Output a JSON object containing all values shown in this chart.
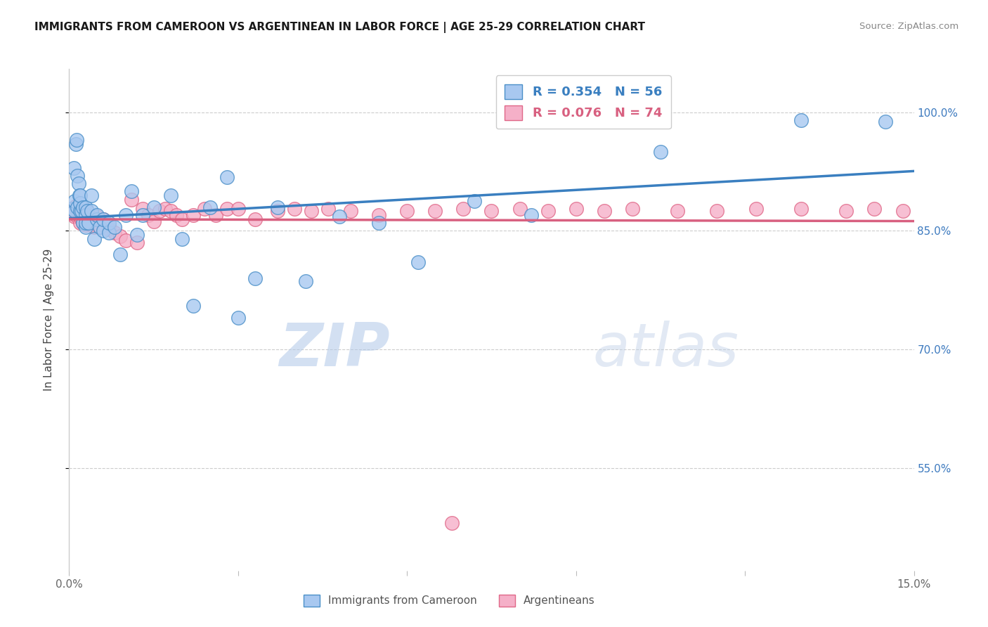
{
  "title": "IMMIGRANTS FROM CAMEROON VS ARGENTINEAN IN LABOR FORCE | AGE 25-29 CORRELATION CHART",
  "source": "Source: ZipAtlas.com",
  "ylabel": "In Labor Force | Age 25-29",
  "xmin": 0.0,
  "xmax": 0.15,
  "ymin": 0.42,
  "ymax": 1.055,
  "blue_R": 0.354,
  "blue_N": 56,
  "pink_R": 0.076,
  "pink_N": 74,
  "blue_color": "#a8c8f0",
  "pink_color": "#f5b0c8",
  "blue_edge_color": "#4a8fc8",
  "pink_edge_color": "#e06888",
  "blue_line_color": "#3a7fc0",
  "pink_line_color": "#d86080",
  "legend_label_blue": "Immigrants from Cameroon",
  "legend_label_pink": "Argentineans",
  "ytick_vals": [
    0.55,
    0.7,
    0.85,
    1.0
  ],
  "ytick_labels": [
    "55.0%",
    "70.0%",
    "85.0%",
    "100.0%"
  ],
  "blue_x": [
    0.0005,
    0.0008,
    0.001,
    0.001,
    0.0012,
    0.0013,
    0.0015,
    0.0015,
    0.0017,
    0.0018,
    0.002,
    0.002,
    0.002,
    0.0022,
    0.0025,
    0.0025,
    0.003,
    0.003,
    0.003,
    0.003,
    0.0032,
    0.0035,
    0.004,
    0.004,
    0.0045,
    0.005,
    0.005,
    0.0055,
    0.006,
    0.006,
    0.007,
    0.007,
    0.008,
    0.009,
    0.01,
    0.011,
    0.012,
    0.013,
    0.015,
    0.018,
    0.02,
    0.022,
    0.025,
    0.028,
    0.03,
    0.033,
    0.037,
    0.042,
    0.048,
    0.055,
    0.062,
    0.072,
    0.082,
    0.105,
    0.13,
    0.145
  ],
  "blue_y": [
    0.878,
    0.93,
    0.875,
    0.888,
    0.96,
    0.965,
    0.92,
    0.88,
    0.91,
    0.895,
    0.875,
    0.885,
    0.895,
    0.875,
    0.88,
    0.86,
    0.88,
    0.87,
    0.855,
    0.86,
    0.875,
    0.86,
    0.895,
    0.875,
    0.84,
    0.865,
    0.87,
    0.855,
    0.85,
    0.865,
    0.848,
    0.86,
    0.855,
    0.82,
    0.87,
    0.9,
    0.845,
    0.87,
    0.88,
    0.895,
    0.84,
    0.755,
    0.88,
    0.918,
    0.74,
    0.79,
    0.88,
    0.786,
    0.868,
    0.86,
    0.81,
    0.888,
    0.87,
    0.95,
    0.99,
    0.988
  ],
  "pink_x": [
    0.0005,
    0.0008,
    0.001,
    0.001,
    0.0012,
    0.0013,
    0.0015,
    0.0015,
    0.0017,
    0.0018,
    0.002,
    0.002,
    0.002,
    0.0022,
    0.0025,
    0.0025,
    0.003,
    0.003,
    0.003,
    0.003,
    0.0032,
    0.0035,
    0.004,
    0.004,
    0.0045,
    0.005,
    0.005,
    0.0055,
    0.006,
    0.006,
    0.007,
    0.007,
    0.008,
    0.009,
    0.01,
    0.011,
    0.012,
    0.013,
    0.014,
    0.015,
    0.016,
    0.017,
    0.018,
    0.019,
    0.02,
    0.022,
    0.024,
    0.026,
    0.028,
    0.03,
    0.033,
    0.037,
    0.04,
    0.043,
    0.046,
    0.05,
    0.055,
    0.06,
    0.065,
    0.07,
    0.075,
    0.08,
    0.085,
    0.09,
    0.095,
    0.1,
    0.108,
    0.115,
    0.122,
    0.13,
    0.138,
    0.143,
    0.148,
    0.068
  ],
  "pink_y": [
    0.872,
    0.875,
    0.868,
    0.878,
    0.882,
    0.878,
    0.875,
    0.868,
    0.874,
    0.88,
    0.86,
    0.868,
    0.874,
    0.865,
    0.86,
    0.872,
    0.858,
    0.865,
    0.868,
    0.875,
    0.86,
    0.865,
    0.858,
    0.868,
    0.855,
    0.86,
    0.868,
    0.855,
    0.858,
    0.865,
    0.852,
    0.858,
    0.848,
    0.843,
    0.838,
    0.89,
    0.835,
    0.878,
    0.87,
    0.862,
    0.875,
    0.878,
    0.875,
    0.87,
    0.865,
    0.87,
    0.878,
    0.87,
    0.878,
    0.878,
    0.865,
    0.875,
    0.878,
    0.875,
    0.878,
    0.875,
    0.87,
    0.875,
    0.875,
    0.878,
    0.875,
    0.878,
    0.875,
    0.878,
    0.875,
    0.878,
    0.875,
    0.875,
    0.878,
    0.878,
    0.875,
    0.878,
    0.875,
    0.48
  ]
}
